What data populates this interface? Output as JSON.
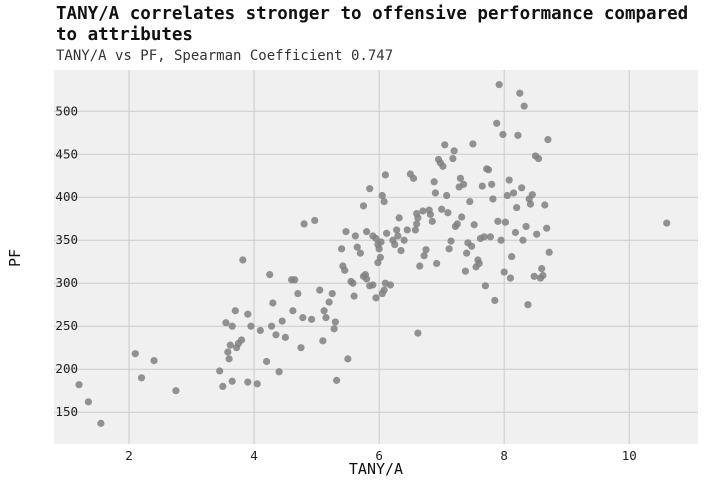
{
  "chart_data": {
    "type": "scatter",
    "title": "TANY/A correlates stronger to offensive performance compared to attributes",
    "subtitle": "TANY/A vs PF, Spearman Coefficient 0.747",
    "xlabel": "TANY/A",
    "ylabel": "PF",
    "xlim": [
      0.8,
      11.1
    ],
    "ylim": [
      113,
      548
    ],
    "x_ticks": [
      2,
      4,
      6,
      8,
      10
    ],
    "y_ticks": [
      150,
      200,
      250,
      300,
      350,
      400,
      450,
      500
    ],
    "grid": true,
    "marker_color": "#808080",
    "background_color": "#f0f0f0",
    "points": [
      [
        1.2,
        182
      ],
      [
        1.35,
        162
      ],
      [
        1.55,
        137
      ],
      [
        2.1,
        218
      ],
      [
        2.2,
        190
      ],
      [
        2.4,
        210
      ],
      [
        2.75,
        175
      ],
      [
        3.45,
        198
      ],
      [
        3.5,
        180
      ],
      [
        3.55,
        254
      ],
      [
        3.58,
        220
      ],
      [
        3.6,
        212
      ],
      [
        3.62,
        228
      ],
      [
        3.65,
        186
      ],
      [
        3.65,
        250
      ],
      [
        3.7,
        268
      ],
      [
        3.72,
        225
      ],
      [
        3.75,
        230
      ],
      [
        3.8,
        234
      ],
      [
        3.82,
        327
      ],
      [
        3.9,
        185
      ],
      [
        3.9,
        264
      ],
      [
        3.95,
        250
      ],
      [
        4.05,
        183
      ],
      [
        4.1,
        245
      ],
      [
        4.2,
        209
      ],
      [
        4.25,
        310
      ],
      [
        4.28,
        250
      ],
      [
        4.3,
        277
      ],
      [
        4.35,
        240
      ],
      [
        4.4,
        197
      ],
      [
        4.45,
        256
      ],
      [
        4.5,
        237
      ],
      [
        4.6,
        304
      ],
      [
        4.62,
        268
      ],
      [
        4.65,
        304
      ],
      [
        4.7,
        288
      ],
      [
        4.75,
        225
      ],
      [
        4.78,
        260
      ],
      [
        4.8,
        369
      ],
      [
        4.92,
        258
      ],
      [
        4.97,
        373
      ],
      [
        5.05,
        292
      ],
      [
        5.1,
        233
      ],
      [
        5.12,
        268
      ],
      [
        5.15,
        260
      ],
      [
        5.2,
        278
      ],
      [
        5.25,
        288
      ],
      [
        5.28,
        247
      ],
      [
        5.3,
        255
      ],
      [
        5.32,
        187
      ],
      [
        5.4,
        340
      ],
      [
        5.42,
        320
      ],
      [
        5.45,
        315
      ],
      [
        5.47,
        360
      ],
      [
        5.5,
        212
      ],
      [
        5.55,
        302
      ],
      [
        5.58,
        300
      ],
      [
        5.6,
        285
      ],
      [
        5.62,
        355
      ],
      [
        5.65,
        342
      ],
      [
        5.7,
        335
      ],
      [
        5.75,
        308
      ],
      [
        5.78,
        310
      ],
      [
        5.8,
        305
      ],
      [
        5.85,
        297
      ],
      [
        5.9,
        298
      ],
      [
        5.95,
        283
      ],
      [
        5.98,
        345
      ],
      [
        6.0,
        340
      ],
      [
        6.02,
        330
      ],
      [
        6.03,
        348
      ],
      [
        6.05,
        288
      ],
      [
        6.08,
        292
      ],
      [
        6.1,
        300
      ],
      [
        5.75,
        390
      ],
      [
        5.8,
        360
      ],
      [
        5.85,
        410
      ],
      [
        5.9,
        355
      ],
      [
        5.95,
        352
      ],
      [
        5.98,
        324
      ],
      [
        6.05,
        402
      ],
      [
        6.08,
        395
      ],
      [
        6.1,
        426
      ],
      [
        6.12,
        358
      ],
      [
        6.18,
        298
      ],
      [
        6.22,
        350
      ],
      [
        6.25,
        345
      ],
      [
        6.28,
        362
      ],
      [
        6.3,
        355
      ],
      [
        6.32,
        376
      ],
      [
        6.35,
        338
      ],
      [
        6.4,
        350
      ],
      [
        6.45,
        362
      ],
      [
        6.5,
        427
      ],
      [
        6.55,
        422
      ],
      [
        6.58,
        362
      ],
      [
        6.6,
        369
      ],
      [
        6.62,
        376
      ],
      [
        6.6,
        381
      ],
      [
        6.62,
        242
      ],
      [
        6.65,
        320
      ],
      [
        6.7,
        384
      ],
      [
        6.72,
        332
      ],
      [
        6.75,
        339
      ],
      [
        6.8,
        385
      ],
      [
        6.82,
        380
      ],
      [
        6.85,
        372
      ],
      [
        6.88,
        418
      ],
      [
        6.9,
        405
      ],
      [
        6.92,
        323
      ],
      [
        6.95,
        444
      ],
      [
        6.98,
        440
      ],
      [
        7.0,
        386
      ],
      [
        7.02,
        436
      ],
      [
        7.05,
        461
      ],
      [
        7.08,
        402
      ],
      [
        7.1,
        382
      ],
      [
        7.12,
        340
      ],
      [
        7.15,
        349
      ],
      [
        7.18,
        445
      ],
      [
        7.2,
        454
      ],
      [
        7.22,
        366
      ],
      [
        7.25,
        369
      ],
      [
        7.28,
        412
      ],
      [
        7.3,
        422
      ],
      [
        7.32,
        377
      ],
      [
        7.35,
        415
      ],
      [
        7.38,
        314
      ],
      [
        7.4,
        335
      ],
      [
        7.42,
        347
      ],
      [
        7.45,
        395
      ],
      [
        7.48,
        343
      ],
      [
        7.5,
        462
      ],
      [
        7.52,
        368
      ],
      [
        7.55,
        319
      ],
      [
        7.58,
        327
      ],
      [
        7.6,
        323
      ],
      [
        7.62,
        352
      ],
      [
        7.65,
        413
      ],
      [
        7.68,
        354
      ],
      [
        7.7,
        297
      ],
      [
        7.72,
        433
      ],
      [
        7.75,
        432
      ],
      [
        7.78,
        354
      ],
      [
        7.8,
        415
      ],
      [
        7.82,
        398
      ],
      [
        7.85,
        280
      ],
      [
        7.88,
        486
      ],
      [
        7.9,
        372
      ],
      [
        7.92,
        531
      ],
      [
        7.95,
        350
      ],
      [
        7.98,
        473
      ],
      [
        8.0,
        313
      ],
      [
        8.02,
        371
      ],
      [
        8.05,
        402
      ],
      [
        8.08,
        420
      ],
      [
        8.1,
        306
      ],
      [
        8.12,
        331
      ],
      [
        8.15,
        405
      ],
      [
        8.18,
        359
      ],
      [
        8.2,
        388
      ],
      [
        8.22,
        472
      ],
      [
        8.25,
        521
      ],
      [
        8.28,
        411
      ],
      [
        8.3,
        350
      ],
      [
        8.32,
        506
      ],
      [
        8.35,
        366
      ],
      [
        8.38,
        275
      ],
      [
        8.4,
        398
      ],
      [
        8.42,
        392
      ],
      [
        8.45,
        403
      ],
      [
        8.48,
        308
      ],
      [
        8.5,
        448
      ],
      [
        8.52,
        357
      ],
      [
        8.55,
        445
      ],
      [
        8.58,
        306
      ],
      [
        8.6,
        317
      ],
      [
        8.62,
        309
      ],
      [
        8.65,
        391
      ],
      [
        8.68,
        364
      ],
      [
        8.7,
        467
      ],
      [
        8.72,
        336
      ],
      [
        10.6,
        370
      ]
    ]
  }
}
